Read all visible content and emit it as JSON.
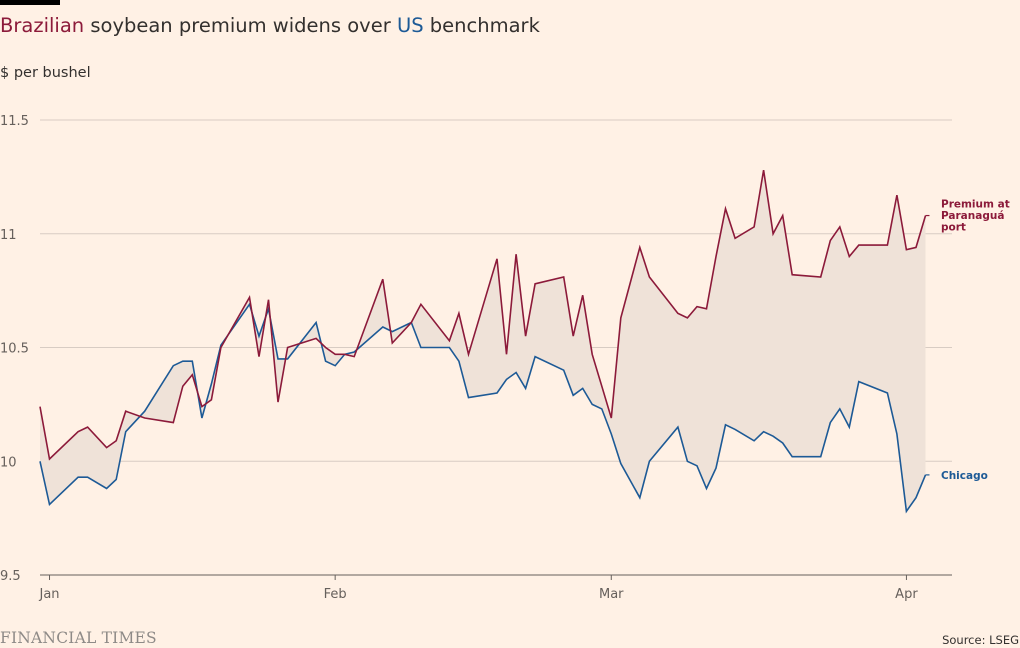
{
  "header": {
    "title_part1": "Brazilian",
    "title_part2": " soybean premium widens over ",
    "title_part3": "US",
    "title_part4": " benchmark",
    "unit": "$ per bushel"
  },
  "footer": {
    "brand": "FINANCIAL TIMES",
    "source": "Source: LSEG"
  },
  "colors": {
    "background": "#fff1e5",
    "brazil": "#8c1a3a",
    "chicago": "#1d5a96",
    "spread_fill": "#efe2d8",
    "grid": "#d8ccc3"
  },
  "chart_data": {
    "type": "line",
    "title": "Brazilian soybean premium widens over US benchmark",
    "ylabel": "$ per bushel",
    "ylim": [
      9.5,
      11.5
    ],
    "yticks": [
      9.5,
      10,
      10.5,
      11,
      11.5
    ],
    "ytick_labels": [
      "9.5",
      "10",
      "10.5",
      "11",
      "11.5"
    ],
    "xlim": [
      "2024-01-01",
      "2024-04-04"
    ],
    "xticks": [
      "2024-01-02",
      "2024-02-01",
      "2024-03-01",
      "2024-04-01"
    ],
    "xtick_labels": [
      "Jan",
      "Feb",
      "Mar",
      "Apr"
    ],
    "grid": true,
    "shaded_area_between_series": true,
    "x": [
      "2024-01-01",
      "2024-01-02",
      "2024-01-05",
      "2024-01-06",
      "2024-01-08",
      "2024-01-09",
      "2024-01-10",
      "2024-01-12",
      "2024-01-15",
      "2024-01-16",
      "2024-01-17",
      "2024-01-18",
      "2024-01-19",
      "2024-01-20",
      "2024-01-23",
      "2024-01-24",
      "2024-01-25",
      "2024-01-26",
      "2024-01-27",
      "2024-01-30",
      "2024-01-31",
      "2024-02-01",
      "2024-02-02",
      "2024-02-03",
      "2024-02-06",
      "2024-02-07",
      "2024-02-09",
      "2024-02-10",
      "2024-02-13",
      "2024-02-14",
      "2024-02-15",
      "2024-02-18",
      "2024-02-19",
      "2024-02-20",
      "2024-02-21",
      "2024-02-22",
      "2024-02-25",
      "2024-02-26",
      "2024-02-27",
      "2024-02-28",
      "2024-02-29",
      "2024-03-01",
      "2024-03-02",
      "2024-03-04",
      "2024-03-05",
      "2024-03-08",
      "2024-03-09",
      "2024-03-10",
      "2024-03-11",
      "2024-03-12",
      "2024-03-13",
      "2024-03-14",
      "2024-03-16",
      "2024-03-17",
      "2024-03-18",
      "2024-03-19",
      "2024-03-20",
      "2024-03-23",
      "2024-03-24",
      "2024-03-25",
      "2024-03-26",
      "2024-03-27",
      "2024-03-30",
      "2024-03-31",
      "2024-04-01",
      "2024-04-02",
      "2024-04-03"
    ],
    "series": [
      {
        "name": "Premium at Paranaguá port",
        "color": "#8c1a3a",
        "values": [
          10.24,
          10.01,
          10.13,
          10.15,
          10.06,
          10.09,
          10.22,
          10.19,
          10.17,
          10.33,
          10.38,
          10.24,
          10.27,
          10.5,
          10.72,
          10.46,
          10.71,
          10.26,
          10.5,
          10.54,
          10.5,
          10.47,
          10.47,
          10.46,
          10.8,
          10.52,
          10.61,
          10.69,
          10.53,
          10.65,
          10.47,
          10.89,
          10.47,
          10.91,
          10.55,
          10.78,
          10.81,
          10.55,
          10.73,
          10.47,
          10.33,
          10.19,
          10.63,
          10.94,
          10.81,
          10.65,
          10.63,
          10.68,
          10.67,
          10.9,
          11.11,
          10.98,
          11.03,
          11.28,
          11.0,
          11.08,
          10.82,
          10.81,
          10.97,
          11.03,
          10.9,
          10.95,
          10.95,
          11.17,
          10.93,
          10.94,
          11.08
        ]
      },
      {
        "name": "Chicago",
        "color": "#1d5a96",
        "values": [
          10.0,
          9.81,
          9.93,
          9.93,
          9.88,
          9.92,
          10.13,
          10.22,
          10.42,
          10.44,
          10.44,
          10.19,
          10.34,
          10.51,
          10.69,
          10.55,
          10.67,
          10.45,
          10.45,
          10.61,
          10.44,
          10.42,
          10.47,
          10.48,
          10.59,
          10.57,
          10.61,
          10.5,
          10.5,
          10.44,
          10.28,
          10.3,
          10.36,
          10.39,
          10.32,
          10.46,
          10.4,
          10.29,
          10.32,
          10.25,
          10.23,
          10.12,
          9.99,
          9.84,
          10.0,
          10.15,
          10.0,
          9.98,
          9.88,
          9.97,
          10.16,
          10.14,
          10.09,
          10.13,
          10.11,
          10.08,
          10.02,
          10.02,
          10.17,
          10.23,
          10.15,
          10.35,
          10.3,
          10.12,
          9.78,
          9.84,
          9.94
        ]
      }
    ]
  }
}
